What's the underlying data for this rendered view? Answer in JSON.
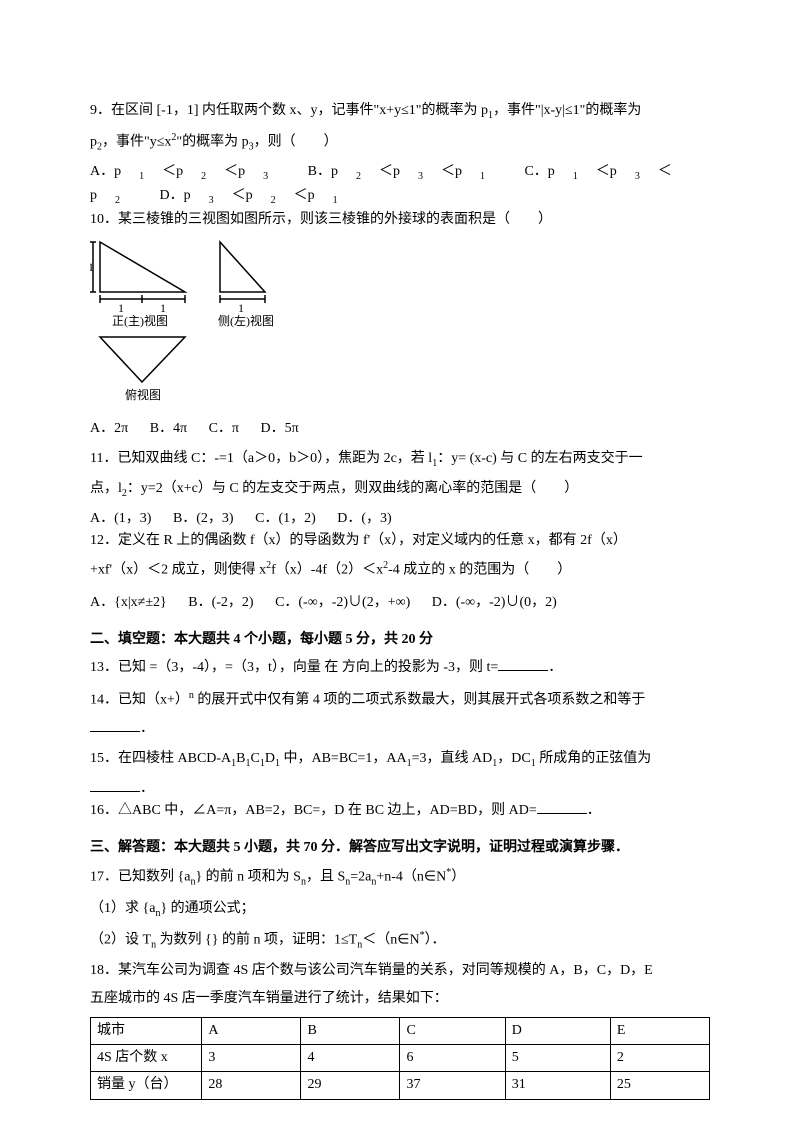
{
  "q9": {
    "line1": "9．在区间 [-1，1] 内任取两个数 x、y，记事件\"x+y≤1\"的概率为 p",
    "line1b": "，事件\"|x-y|≤1\"的概率为",
    "line2a": "p",
    "line2b": "，事件\"y≤x",
    "line2c": "\"的概率为 p",
    "line2d": "，则（　　）",
    "optA": "A．p",
    "optA2": "＜p",
    "optA3": "＜p",
    "optB": "B．p",
    "optC": "C．p",
    "optD": "D．p"
  },
  "q10": {
    "text": "10．某三棱锥的三视图如图所示，则该三棱锥的外接球的表面积是（　　）",
    "labels": {
      "front": "正(主)视图",
      "side": "侧(左)视图",
      "top": "俯视图"
    },
    "optA": "A．2π",
    "optB": "B．4π",
    "optC": "C．π",
    "optD": "D．5π"
  },
  "q11": {
    "line1": "11．已知双曲线 C：-=1（a＞0，b＞0），焦距为 2c，若 l",
    "line1b": "：y= (x-c) 与 C 的左右两支交于一",
    "line2a": "点，l",
    "line2b": "：y=2（x+c）与 C 的左支交于两点，则双曲线的离心率的范围是（　　）",
    "optA": "A．(1，3)",
    "optB": "B．(2，3)",
    "optC": "C．(1，2)",
    "optD": "D．(，3)"
  },
  "q12": {
    "line1": "12．定义在 R 上的偶函数 f（x）的导函数为 f'（x），对定义域内的任意 x，都有 2f（x）",
    "line2a": "+xf'（x）＜2 成立，则使得 x",
    "line2b": "f（x）-4f（2）＜x",
    "line2c": "-4 成立的 x 的范围为（　　）",
    "optA": "A．{x|x≠±2}",
    "optB": "B．(-2，2)",
    "optC": "C．(-∞，-2)∪(2，+∞)",
    "optD": "D．(-∞，-2)∪(0，2)"
  },
  "sec2": "二、填空题：本大题共 4 个小题，每小题 5 分，共 20 分",
  "q13": "13．已知 =（3，-4），=（3，t），向量 在 方向上的投影为 -3，则 t=",
  "q14a": "14．已知（x+）",
  "q14b": " 的展开式中仅有第 4 项的二项式系数最大，则其展开式各项系数之和等于",
  "q15a": "15．在四棱柱 ABCD-A",
  "q15b": "B",
  "q15c": "C",
  "q15d": "D",
  "q15e": " 中，AB=BC=1，AA",
  "q15f": "=3，直线 AD",
  "q15g": "，DC",
  "q15h": " 所成角的正弦值为",
  "q16": "16．△ABC 中，∠A=π，AB=2，BC=，D 在 BC 边上，AD=BD，则 AD=",
  "sec3": "三、解答题：本大题共 5 小题，共 70 分．解答应写出文字说明，证明过程或演算步骤．",
  "q17a": "17．已知数列 {a",
  "q17b": "} 的前 n 项和为 S",
  "q17c": "，且 S",
  "q17d": "=2a",
  "q17e": "+n-4（n∈N",
  "q17f": "）",
  "q17p1": "（1）求 {a",
  "q17p1b": "} 的通项公式；",
  "q17p2a": "（2）设 T",
  "q17p2b": " 为数列 {} 的前 n 项，证明：1≤T",
  "q17p2c": "＜（n∈N",
  "q17p2d": "）．",
  "q18a": "18．某汽车公司为调查 4S 店个数与该公司汽车销量的关系，对同等规模的 A，B，C，D，E",
  "q18b": "五座城市的 4S 店一季度汽车销量进行了统计，结果如下：",
  "table": {
    "colwidths": [
      "18%",
      "16%",
      "16%",
      "17%",
      "17%",
      "16%"
    ],
    "rows": [
      [
        "城市",
        "A",
        "B",
        "C",
        "D",
        "E"
      ],
      [
        "4S 店个数 x",
        "3",
        "4",
        "6",
        "5",
        "2"
      ],
      [
        "销量 y（台）",
        "28",
        "29",
        "37",
        "31",
        "25"
      ]
    ]
  }
}
